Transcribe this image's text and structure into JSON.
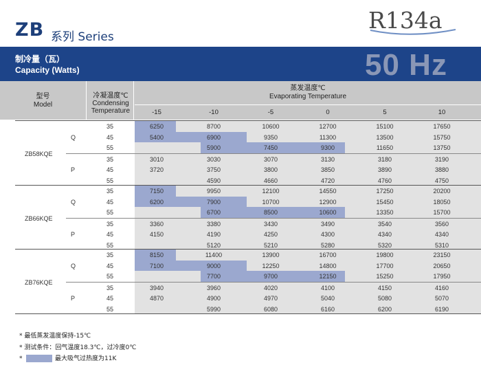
{
  "header": {
    "series_code": "ZB",
    "series_label": "系列 Series",
    "refrigerant": "R134a",
    "capacity_cn": "制冷量（瓦）",
    "capacity_en": "Capacity (Watts)",
    "frequency": "50 Hz"
  },
  "table": {
    "model_header_cn": "型号",
    "model_header_en": "Model",
    "cond_header_cn": "冷凝温度℃",
    "cond_header_en_1": "Condensing",
    "cond_header_en_2": "Temperature",
    "evap_header_cn": "蒸发温度℃",
    "evap_header_en": "Evaporating Temperature",
    "evap_temps": [
      "-15",
      "-10",
      "-5",
      "0",
      "5",
      "10"
    ],
    "models": [
      {
        "name": "ZB58KQE",
        "groups": [
          {
            "type": "Q",
            "rows": [
              {
                "cond": "35",
                "values": [
                  "6250",
                  "8700",
                  "10600",
                  "12700",
                  "15100",
                  "17650"
                ]
              },
              {
                "cond": "45",
                "values": [
                  "5400",
                  "6900",
                  "9350",
                  "11300",
                  "13500",
                  "15750"
                ]
              },
              {
                "cond": "55",
                "values": [
                  "",
                  "5900",
                  "7450",
                  "9300",
                  "11650",
                  "13750"
                ]
              }
            ]
          },
          {
            "type": "P",
            "rows": [
              {
                "cond": "35",
                "values": [
                  "3010",
                  "3030",
                  "3070",
                  "3130",
                  "3180",
                  "3190"
                ]
              },
              {
                "cond": "45",
                "values": [
                  "3720",
                  "3750",
                  "3800",
                  "3850",
                  "3890",
                  "3880"
                ]
              },
              {
                "cond": "55",
                "values": [
                  "",
                  "4590",
                  "4660",
                  "4720",
                  "4760",
                  "4750"
                ]
              }
            ]
          }
        ]
      },
      {
        "name": "ZB66KQE",
        "groups": [
          {
            "type": "Q",
            "rows": [
              {
                "cond": "35",
                "values": [
                  "7150",
                  "9950",
                  "12100",
                  "14550",
                  "17250",
                  "20200"
                ]
              },
              {
                "cond": "45",
                "values": [
                  "6200",
                  "7900",
                  "10700",
                  "12900",
                  "15450",
                  "18050"
                ]
              },
              {
                "cond": "55",
                "values": [
                  "",
                  "6700",
                  "8500",
                  "10600",
                  "13350",
                  "15700"
                ]
              }
            ]
          },
          {
            "type": "P",
            "rows": [
              {
                "cond": "35",
                "values": [
                  "3360",
                  "3380",
                  "3430",
                  "3490",
                  "3540",
                  "3560"
                ]
              },
              {
                "cond": "45",
                "values": [
                  "4150",
                  "4190",
                  "4250",
                  "4300",
                  "4340",
                  "4340"
                ]
              },
              {
                "cond": "55",
                "values": [
                  "",
                  "5120",
                  "5210",
                  "5280",
                  "5320",
                  "5310"
                ]
              }
            ]
          }
        ]
      },
      {
        "name": "ZB76KQE",
        "groups": [
          {
            "type": "Q",
            "rows": [
              {
                "cond": "35",
                "values": [
                  "8150",
                  "11400",
                  "13900",
                  "16700",
                  "19800",
                  "23150"
                ]
              },
              {
                "cond": "45",
                "values": [
                  "7100",
                  "9000",
                  "12250",
                  "14800",
                  "17700",
                  "20650"
                ]
              },
              {
                "cond": "55",
                "values": [
                  "",
                  "7700",
                  "9700",
                  "12150",
                  "15250",
                  "17950"
                ]
              }
            ]
          },
          {
            "type": "P",
            "rows": [
              {
                "cond": "35",
                "values": [
                  "3940",
                  "3960",
                  "4020",
                  "4100",
                  "4150",
                  "4160"
                ]
              },
              {
                "cond": "45",
                "values": [
                  "4870",
                  "4900",
                  "4970",
                  "5040",
                  "5080",
                  "5070"
                ]
              },
              {
                "cond": "55",
                "values": [
                  "",
                  "5990",
                  "6080",
                  "6160",
                  "6200",
                  "6190"
                ]
              }
            ]
          }
        ]
      }
    ]
  },
  "notes": {
    "note1": "* 最低蒸发温度保持-15℃",
    "note2": "* 测试条件：回气温度18.3℃，过冷度0℃",
    "note3_star": "*",
    "legend_text": "最大吸气过热度为11K"
  },
  "colors": {
    "brand_blue": "#1d4489",
    "highlight": "#9ba8cf",
    "header_grey": "#c8c8c8",
    "body_grey": "#e2e2e2"
  }
}
